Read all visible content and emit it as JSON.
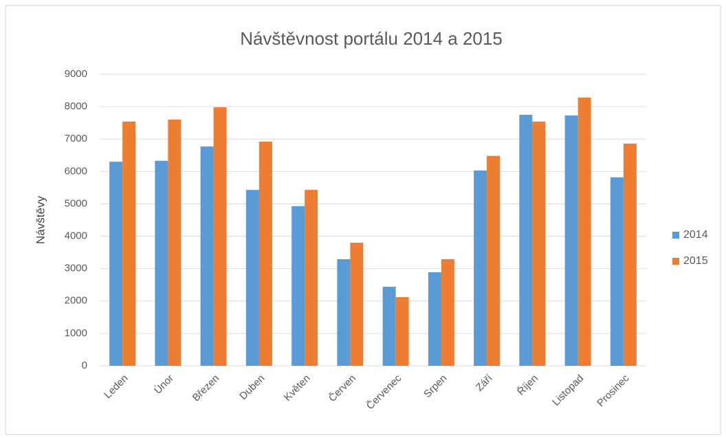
{
  "chart_data": {
    "type": "bar",
    "title": "Návštěvnost portálu 2014 a 2015",
    "y_label": "Návštěvy",
    "categories": [
      "Leden",
      "Únor",
      "Březen",
      "Duben",
      "Květen",
      "Červen",
      "Červenec",
      "Srpen",
      "Září",
      "Říjen",
      "Listopad",
      "Prosinec"
    ],
    "series": [
      {
        "name": "2014",
        "color": "#5b9bd5",
        "values": [
          6300,
          6330,
          6770,
          5430,
          4930,
          3290,
          2440,
          2890,
          6030,
          7750,
          7730,
          5820
        ]
      },
      {
        "name": "2015",
        "color": "#ed7d31",
        "values": [
          7540,
          7600,
          7980,
          6920,
          5430,
          3800,
          2120,
          3290,
          6480,
          7540,
          8280,
          6860
        ]
      }
    ],
    "ylim": [
      0,
      9000
    ],
    "yticks": [
      0,
      1000,
      2000,
      3000,
      4000,
      5000,
      6000,
      7000,
      8000,
      9000
    ],
    "grid": true,
    "legend": "right"
  }
}
